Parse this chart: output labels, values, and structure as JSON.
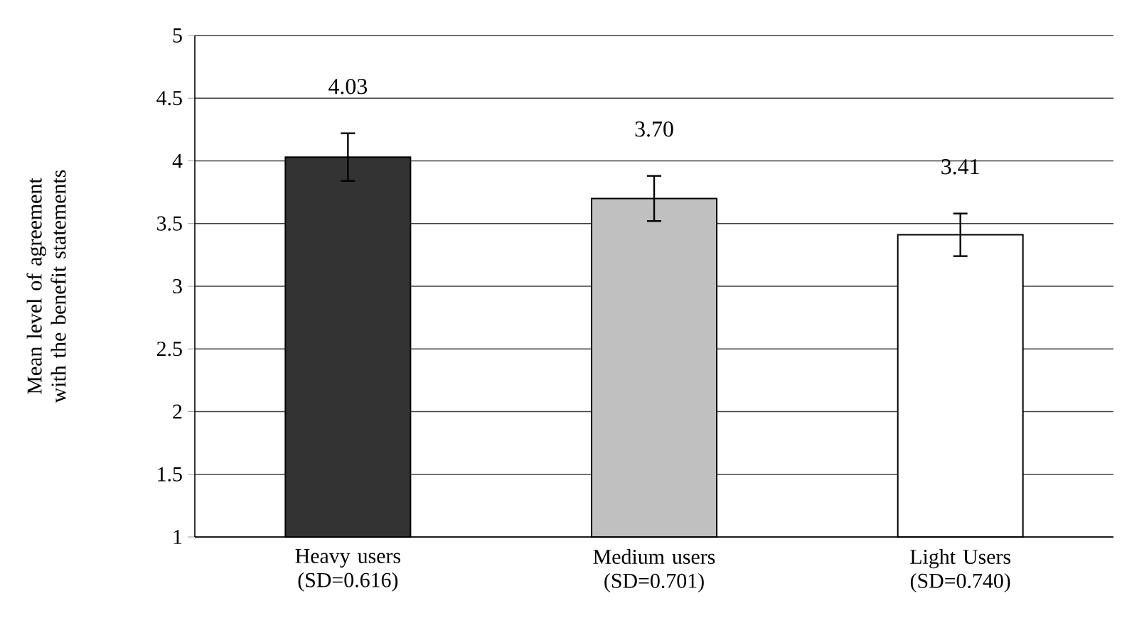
{
  "chart_data": {
    "type": "bar",
    "ylabel": "Mean level of agreement with the benefit statements",
    "categories": [
      "Heavy users (SD=0.616)",
      "Medium users (SD=0.701)",
      "Light Users (SD=0.740)"
    ],
    "values": [
      4.03,
      3.7,
      3.41
    ],
    "colors": [
      "#333333",
      "#c0c0c0",
      "#ffffff"
    ],
    "errors": [
      0.19,
      0.18,
      0.17
    ],
    "value_labels": [
      "4.03",
      "3.70",
      "3.41"
    ],
    "ylim": [
      1,
      5
    ],
    "yticks": [
      1,
      1.5,
      2,
      2.5,
      3,
      3.5,
      4,
      4.5,
      5
    ],
    "grid": "y"
  }
}
